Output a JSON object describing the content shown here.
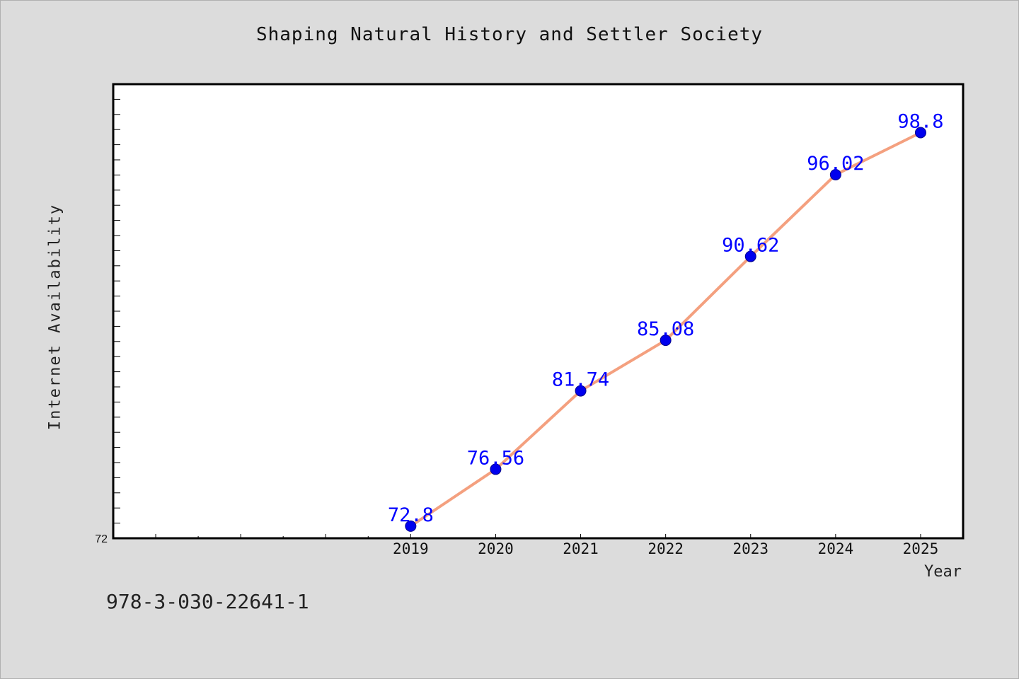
{
  "chart_data": {
    "type": "line",
    "title": "Shaping Natural History and Settler Society",
    "xlabel": "Year",
    "ylabel": "Internet Availability",
    "x": [
      2019,
      2020,
      2021,
      2022,
      2023,
      2024,
      2025
    ],
    "values": [
      72.8,
      76.56,
      81.74,
      85.08,
      90.62,
      96.02,
      98.8
    ],
    "point_labels": [
      "72.8",
      "76.56",
      "81.74",
      "85.08",
      "90.62",
      "96.02",
      "98.8"
    ],
    "x_ticks": [
      "2019",
      "2020",
      "2021",
      "2022",
      "2023",
      "2024",
      "2025"
    ],
    "xlim": [
      2015.5,
      2025.5
    ],
    "y_tick_labels": [
      "72"
    ],
    "ylim": [
      72,
      102
    ],
    "line_color": "#f4a07f",
    "marker_color": "#0000ee",
    "label_color": "#0000ff",
    "grid": false
  },
  "footer": {
    "isbn": "978-3-030-22641-1"
  }
}
